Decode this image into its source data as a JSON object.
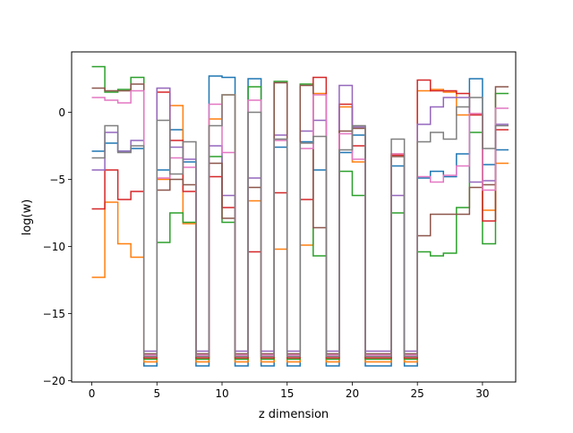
{
  "chart_data": {
    "type": "line",
    "drawstyle": "steps-post",
    "xlabel": "z dimension",
    "ylabel": "log(w)",
    "xlim": [
      -1.55,
      32.55
    ],
    "ylim": [
      -20.1,
      4.5
    ],
    "xticks": [
      0,
      5,
      10,
      15,
      20,
      25,
      30
    ],
    "yticks": [
      -20,
      -15,
      -10,
      -5,
      0
    ],
    "xtick_labels": [
      "0",
      "5",
      "10",
      "15",
      "20",
      "25",
      "30"
    ],
    "ytick_labels": [
      "−20",
      "−15",
      "−10",
      "−5",
      "0"
    ],
    "grid": false,
    "legend": "none",
    "x": [
      0,
      1,
      2,
      3,
      4,
      5,
      6,
      7,
      8,
      9,
      10,
      11,
      12,
      13,
      14,
      15,
      16,
      17,
      18,
      19,
      20,
      21,
      22,
      23,
      24,
      25,
      26,
      27,
      28,
      29,
      30,
      31
    ],
    "series": [
      {
        "color": "#1f77b4",
        "values": [
          -2.9,
          -2.3,
          -2.9,
          -2.7,
          -18.9,
          -4.3,
          -1.3,
          -3.7,
          -18.9,
          2.7,
          2.6,
          -18.9,
          2.5,
          -18.9,
          -2.6,
          -18.9,
          -2.2,
          -4.3,
          -18.9,
          -3.0,
          -1.7,
          -18.9,
          -18.9,
          -4.0,
          -18.9,
          -4.9,
          -4.4,
          -4.8,
          -3.1,
          2.5,
          -3.9,
          -2.8
        ]
      },
      {
        "color": "#ff7f0e",
        "values": [
          -12.3,
          -6.7,
          -9.8,
          -10.8,
          -18.6,
          -5.0,
          0.5,
          -8.3,
          -18.6,
          -0.5,
          1.3,
          -18.6,
          -6.6,
          -18.6,
          -10.2,
          -18.6,
          -9.9,
          1.4,
          -18.6,
          0.4,
          -3.7,
          -18.6,
          -18.6,
          -3.1,
          -18.6,
          1.6,
          1.7,
          1.5,
          -0.2,
          -0.1,
          -7.3,
          -3.8
        ]
      },
      {
        "color": "#2ca02c",
        "values": [
          3.4,
          1.5,
          1.7,
          2.6,
          -18.4,
          -9.7,
          -7.5,
          -8.2,
          -18.4,
          -3.3,
          -8.2,
          -18.4,
          1.9,
          -18.4,
          2.3,
          -18.4,
          2.1,
          -10.7,
          -18.4,
          -4.4,
          -6.2,
          -18.4,
          -18.4,
          -7.5,
          -18.4,
          -10.4,
          -10.7,
          -10.5,
          -7.1,
          -1.5,
          -9.8,
          1.4
        ]
      },
      {
        "color": "#d62728",
        "values": [
          -7.2,
          -4.3,
          -6.5,
          -5.9,
          -18.3,
          1.5,
          -2.1,
          -5.9,
          -18.3,
          -4.8,
          -7.1,
          -18.3,
          -10.4,
          -18.3,
          -6.0,
          -18.3,
          -6.5,
          2.6,
          -18.3,
          0.6,
          -2.5,
          -18.3,
          -18.3,
          -3.2,
          -18.3,
          2.4,
          1.6,
          1.6,
          1.4,
          -0.2,
          -8.1,
          -1.3
        ]
      },
      {
        "color": "#9467bd",
        "values": [
          -4.3,
          -1.5,
          -2.9,
          -2.1,
          -17.8,
          1.8,
          -2.6,
          -3.5,
          -17.8,
          -2.5,
          -6.2,
          -17.8,
          -4.9,
          -17.8,
          -1.7,
          -17.8,
          -1.4,
          -0.6,
          -17.8,
          2.0,
          -1.1,
          -17.8,
          -17.8,
          -6.2,
          -17.8,
          -0.9,
          0.4,
          1.1,
          1.1,
          -5.2,
          -5.1,
          -0.9
        ]
      },
      {
        "color": "#8c564b",
        "values": [
          1.8,
          1.6,
          1.6,
          2.1,
          -18.0,
          -5.8,
          -5.0,
          -5.4,
          -18.0,
          -3.8,
          -7.9,
          -18.0,
          -5.6,
          -18.0,
          2.2,
          -18.0,
          2.0,
          -8.6,
          -18.0,
          -1.4,
          -1.2,
          -18.0,
          -18.0,
          -3.3,
          -18.0,
          -9.2,
          -7.6,
          -7.6,
          -7.6,
          -5.6,
          -5.4,
          1.9
        ]
      },
      {
        "color": "#e377c2",
        "values": [
          1.1,
          0.9,
          0.7,
          1.6,
          -18.1,
          -4.9,
          -3.4,
          -4.1,
          -18.1,
          0.6,
          -3.0,
          -18.1,
          0.9,
          -18.1,
          -2.1,
          -18.1,
          -2.7,
          1.3,
          -18.1,
          -1.6,
          -3.5,
          -18.1,
          -18.1,
          -3.1,
          -18.1,
          -4.8,
          -5.2,
          -4.7,
          -4.0,
          -0.1,
          -5.8,
          0.3
        ]
      },
      {
        "color": "#7f7f7f",
        "values": [
          -3.4,
          -1.0,
          -3.0,
          -2.5,
          -18.2,
          -0.6,
          -4.6,
          -2.2,
          -18.2,
          -1.0,
          1.3,
          -18.2,
          0.0,
          -18.2,
          -2.0,
          -18.2,
          -2.3,
          -1.8,
          -18.2,
          -2.8,
          -1.0,
          -18.2,
          -18.2,
          -2.0,
          -18.2,
          -2.2,
          -1.5,
          -2.0,
          0.4,
          1.1,
          -2.7,
          -1.0
        ]
      }
    ]
  }
}
